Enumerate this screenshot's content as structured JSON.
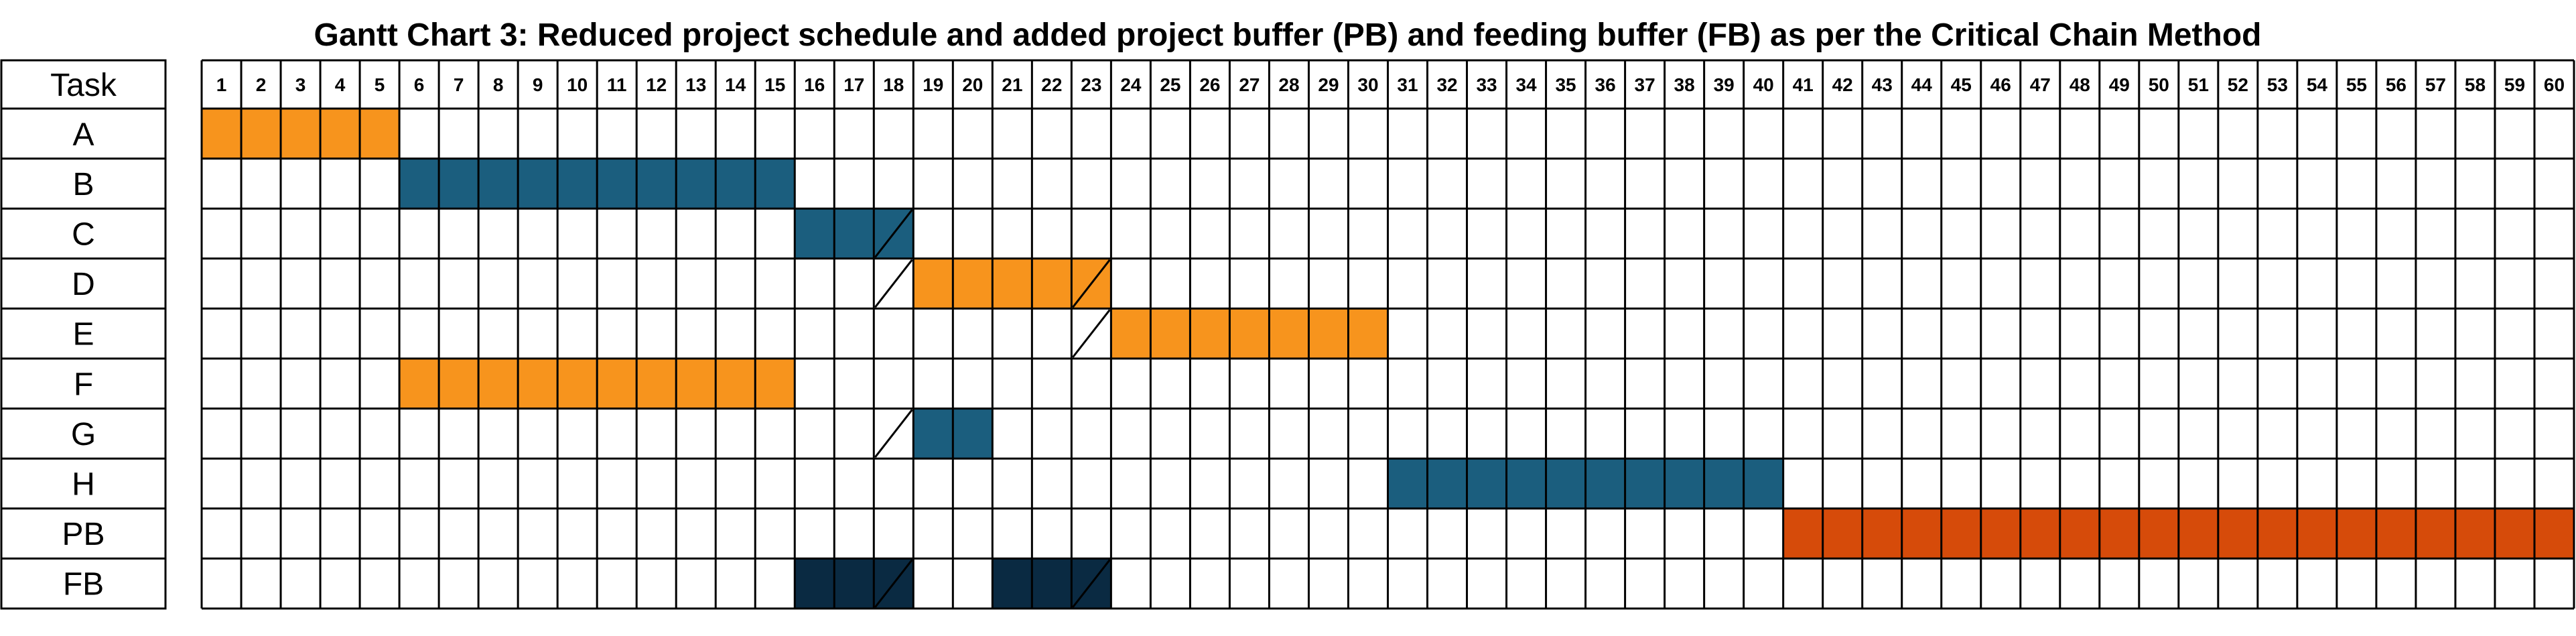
{
  "chart_data": {
    "type": "gantt",
    "title": "Gantt Chart 3: Reduced project schedule and added project buffer (PB) and feeding buffer (FB) as per the Critical Chain Method",
    "task_header": "Task",
    "periods": [
      1,
      2,
      3,
      4,
      5,
      6,
      7,
      8,
      9,
      10,
      11,
      12,
      13,
      14,
      15,
      16,
      17,
      18,
      19,
      20,
      21,
      22,
      23,
      24,
      25,
      26,
      27,
      28,
      29,
      30,
      31,
      32,
      33,
      34,
      35,
      36,
      37,
      38,
      39,
      40,
      41,
      42,
      43,
      44,
      45,
      46,
      47,
      48,
      49,
      50,
      51,
      52,
      53,
      54,
      55,
      56,
      57,
      58,
      59,
      60
    ],
    "colors": {
      "orange": "#f7941d",
      "teal": "#1b5e7e",
      "buffer": "#d64b0a",
      "feeding": "#0a2a42"
    },
    "tasks": [
      {
        "name": "A",
        "segments": [
          {
            "start": 1,
            "end": 5,
            "color": "orange"
          }
        ],
        "slashes": []
      },
      {
        "name": "B",
        "segments": [
          {
            "start": 6,
            "end": 15,
            "color": "teal"
          }
        ],
        "slashes": []
      },
      {
        "name": "C",
        "segments": [
          {
            "start": 16,
            "end": 18,
            "color": "teal"
          }
        ],
        "slashes": [
          18
        ]
      },
      {
        "name": "D",
        "segments": [
          {
            "start": 19,
            "end": 23,
            "color": "orange"
          }
        ],
        "slashes": [
          18,
          23
        ]
      },
      {
        "name": "E",
        "segments": [
          {
            "start": 24,
            "end": 30,
            "color": "orange"
          }
        ],
        "slashes": [
          23
        ]
      },
      {
        "name": "F",
        "segments": [
          {
            "start": 6,
            "end": 15,
            "color": "orange"
          }
        ],
        "slashes": []
      },
      {
        "name": "G",
        "segments": [
          {
            "start": 19,
            "end": 20,
            "color": "teal"
          }
        ],
        "slashes": [
          18
        ]
      },
      {
        "name": "H",
        "segments": [
          {
            "start": 31,
            "end": 40,
            "color": "teal"
          }
        ],
        "slashes": []
      },
      {
        "name": "PB",
        "segments": [
          {
            "start": 41,
            "end": 60,
            "color": "buffer"
          }
        ],
        "slashes": []
      },
      {
        "name": "FB",
        "segments": [
          {
            "start": 16,
            "end": 18,
            "color": "feeding"
          },
          {
            "start": 21,
            "end": 23,
            "color": "feeding"
          }
        ],
        "slashes": [
          18,
          23
        ]
      }
    ]
  }
}
